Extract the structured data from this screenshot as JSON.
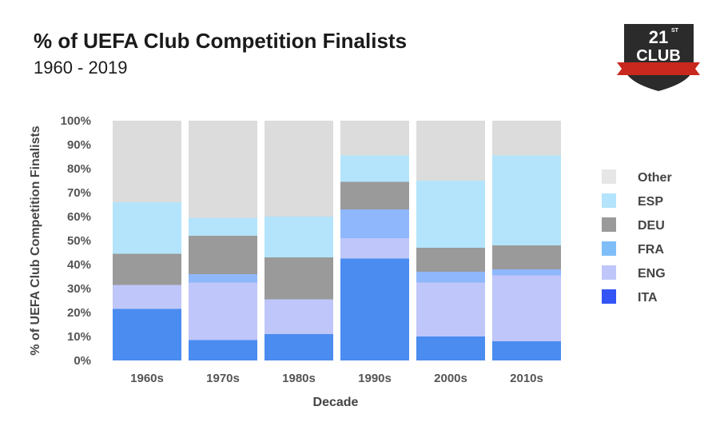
{
  "header": {
    "title": "% of UEFA Club Competition Finalists",
    "subtitle": "1960 - 2019"
  },
  "logo": {
    "number": "21",
    "superscript": "ST",
    "word": "CLUB",
    "colors": {
      "shield": "#2b2b2b",
      "ribbon": "#c8281e"
    }
  },
  "chart_data": {
    "type": "bar",
    "stacked": true,
    "categories": [
      "1960s",
      "1970s",
      "1980s",
      "1990s",
      "2000s",
      "2010s"
    ],
    "series": [
      {
        "name": "ITA",
        "color": "#4a8cf0",
        "values": [
          21.5,
          8.5,
          11,
          42.5,
          10,
          8
        ]
      },
      {
        "name": "ENG",
        "color": "#bfc6fa",
        "values": [
          10,
          24,
          14.5,
          8.5,
          22.5,
          27.5
        ]
      },
      {
        "name": "FRA",
        "color": "#8fb7fb",
        "values": [
          0,
          3.5,
          0,
          12,
          4.5,
          2.5
        ]
      },
      {
        "name": "DEU",
        "color": "#9a9a9a",
        "values": [
          13,
          16,
          17.5,
          11.5,
          10,
          10
        ]
      },
      {
        "name": "ESP",
        "color": "#b3e4fb",
        "values": [
          21.5,
          7.5,
          17,
          11,
          28,
          37.5
        ]
      },
      {
        "name": "Other",
        "color": "#dcdcdc",
        "values": [
          34,
          40.5,
          40,
          14.5,
          25,
          14.5
        ]
      }
    ],
    "xlabel": "Decade",
    "ylabel": "% of UEFA Club Competition Finalists",
    "ylim": [
      0,
      100
    ],
    "yticks": [
      "0%",
      "10%",
      "20%",
      "30%",
      "40%",
      "50%",
      "60%",
      "70%",
      "80%",
      "90%",
      "100%"
    ],
    "grid": false,
    "legend": {
      "placement": "right",
      "entries": [
        {
          "name": "Other",
          "color": "#e6e6e6"
        },
        {
          "name": "ESP",
          "color": "#b3e4fb"
        },
        {
          "name": "DEU",
          "color": "#9a9a9a"
        },
        {
          "name": "FRA",
          "color": "#7fbef9"
        },
        {
          "name": "ENG",
          "color": "#bfc6fa"
        },
        {
          "name": "ITA",
          "color": "#3355f5"
        }
      ]
    }
  }
}
